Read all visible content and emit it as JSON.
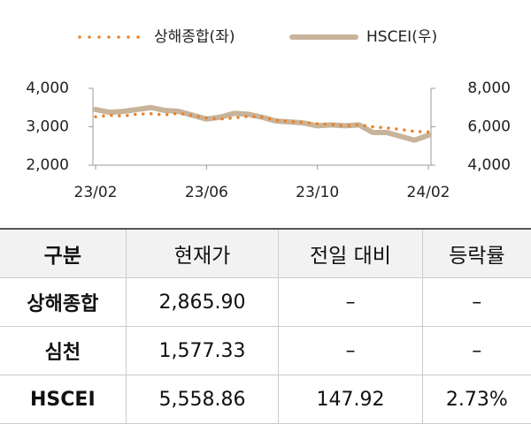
{
  "chart_data": {
    "type": "line",
    "categories": [
      "23/02",
      null,
      null,
      null,
      null,
      null,
      null,
      null,
      "23/06",
      null,
      null,
      null,
      null,
      null,
      null,
      null,
      "23/10",
      null,
      null,
      null,
      null,
      null,
      null,
      null,
      "24/02"
    ],
    "series": [
      {
        "name": "상해종합(좌)",
        "color": "#e8822a",
        "style": "dotted",
        "axis": "y",
        "values": [
          3260,
          3300,
          3280,
          3330,
          3340,
          3310,
          3350,
          3290,
          3230,
          3200,
          3230,
          3270,
          3250,
          3170,
          3140,
          3110,
          3080,
          3060,
          3020,
          3050,
          3000,
          2970,
          2930,
          2880,
          2866
        ]
      },
      {
        "name": "HSCEI(우)",
        "color": "#c8b49a",
        "style": "solid",
        "axis": "y2",
        "values": [
          6900,
          6750,
          6800,
          6900,
          7000,
          6850,
          6800,
          6600,
          6400,
          6500,
          6700,
          6650,
          6500,
          6300,
          6250,
          6200,
          6050,
          6100,
          6050,
          6100,
          5700,
          5700,
          5500,
          5300,
          5559
        ]
      }
    ],
    "ylim": [
      2000,
      4000
    ],
    "yticks": [
      {
        "value": 2000,
        "label": "2,000"
      },
      {
        "value": 3000,
        "label": "3,000"
      },
      {
        "value": 4000,
        "label": "4,000"
      }
    ],
    "y2lim": [
      4000,
      8000
    ],
    "y2ticks": [
      {
        "value": 4000,
        "label": "4,000"
      },
      {
        "value": 6000,
        "label": "6,000"
      },
      {
        "value": 8000,
        "label": "8,000"
      }
    ],
    "legend": "top"
  },
  "table": {
    "header": [
      "구분",
      "현재가",
      "전일 대비",
      "등락률"
    ],
    "rows": [
      [
        "상해종합",
        "2,865.90",
        "–",
        "–"
      ],
      [
        "심천",
        "1,577.33",
        "–",
        "–"
      ],
      [
        "HSCEI",
        "5,558.86",
        "147.92",
        "2.73%"
      ]
    ]
  }
}
